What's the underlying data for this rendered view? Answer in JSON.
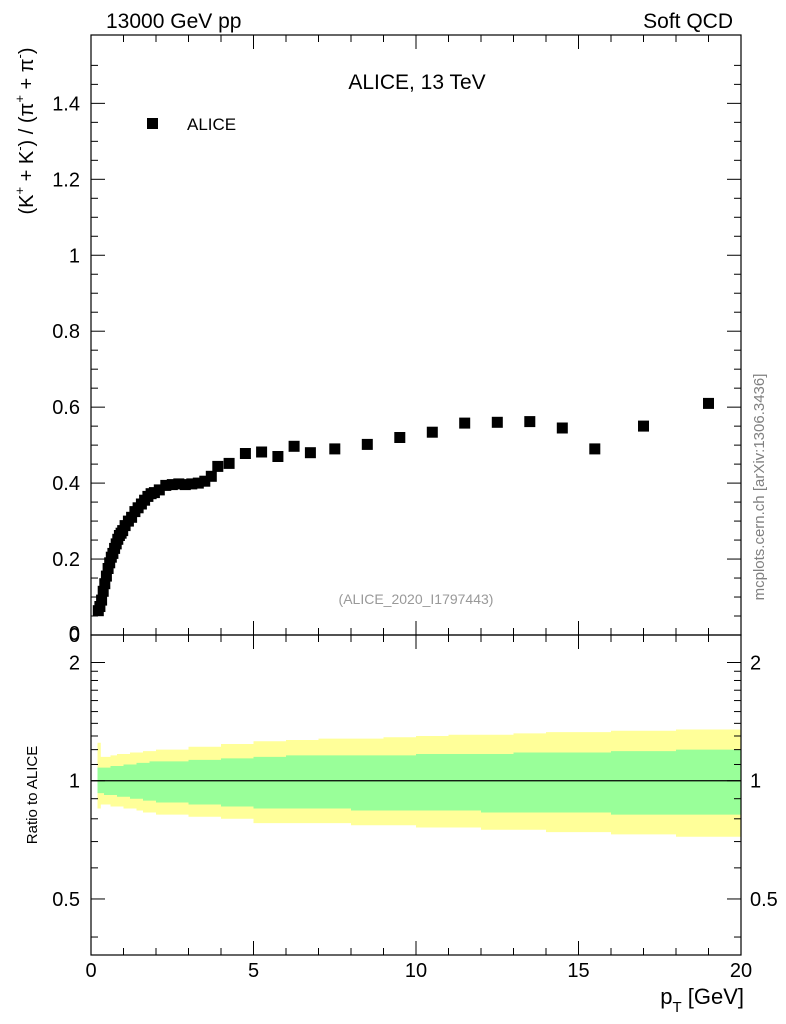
{
  "header": {
    "left": "13000 GeV pp",
    "right": "Soft QCD"
  },
  "side_label": "mcplots.cern.ch [arXiv:1306.3436]",
  "colors": {
    "band_outer": "#ffff99",
    "band_inner": "#99ff99",
    "marker": "#000000",
    "ref_line": "#000000",
    "watermark": "#999999"
  },
  "chart_data": [
    {
      "type": "scatter",
      "panel": "main",
      "title": "ALICE, 13 TeV",
      "ylabel_parts": {
        "open": "(K",
        "k_sup_plus": "+",
        "plus1": " + K",
        "k_sup_minus": "-",
        "mid": ") / (π",
        "pi_sup_plus": "+",
        "plus2": " + π",
        "pi_sup_minus": "-",
        "close": ")"
      },
      "watermark": "(ALICE_2020_I1797443)",
      "legend": {
        "entries": [
          "ALICE"
        ],
        "position": "top-left"
      },
      "xlim": [
        0,
        20
      ],
      "ylim": [
        0,
        1.58
      ],
      "yticks": [
        "0",
        "0.2",
        "0.4",
        "0.6",
        "0.8",
        "1",
        "1.2",
        "1.4"
      ],
      "series": [
        {
          "name": "ALICE",
          "x": [
            0.225,
            0.275,
            0.325,
            0.375,
            0.425,
            0.475,
            0.525,
            0.575,
            0.625,
            0.675,
            0.725,
            0.775,
            0.825,
            0.875,
            0.925,
            0.975,
            1.05,
            1.15,
            1.25,
            1.35,
            1.45,
            1.55,
            1.65,
            1.75,
            1.85,
            1.95,
            2.1,
            2.3,
            2.5,
            2.7,
            2.9,
            3.1,
            3.3,
            3.5,
            3.7,
            3.9,
            4.25,
            4.75,
            5.25,
            5.75,
            6.25,
            6.75,
            7.5,
            8.5,
            9.5,
            10.5,
            11.5,
            12.5,
            13.5,
            14.5,
            15.5,
            17.0,
            19.0
          ],
          "y": [
            0.064,
            0.075,
            0.092,
            0.115,
            0.135,
            0.155,
            0.175,
            0.19,
            0.205,
            0.215,
            0.228,
            0.24,
            0.252,
            0.262,
            0.268,
            0.275,
            0.288,
            0.3,
            0.31,
            0.325,
            0.335,
            0.345,
            0.355,
            0.365,
            0.372,
            0.375,
            0.382,
            0.394,
            0.396,
            0.398,
            0.396,
            0.398,
            0.4,
            0.405,
            0.418,
            0.444,
            0.452,
            0.478,
            0.482,
            0.47,
            0.497,
            0.48,
            0.49,
            0.502,
            0.52,
            0.534,
            0.558,
            0.56,
            0.562,
            0.545,
            0.49,
            0.55,
            0.61
          ]
        }
      ]
    },
    {
      "type": "area",
      "panel": "ratio",
      "ylabel": "Ratio to ALICE",
      "xlabel": "p",
      "xlabel_sub": "T",
      "xlabel_unit": " [GeV]",
      "xlim": [
        0,
        20
      ],
      "ylim": [
        0.36,
        2.35
      ],
      "yscale": "log",
      "xticks": [
        "0",
        "5",
        "10",
        "15",
        "20"
      ],
      "yticks": [
        "0.5",
        "1",
        "2"
      ],
      "reference": 1,
      "bands": {
        "x_edges": [
          0.2,
          0.3,
          0.4,
          0.6,
          0.8,
          1.0,
          1.2,
          1.4,
          1.6,
          1.8,
          2.0,
          3.0,
          4.0,
          5.0,
          6.0,
          7.0,
          8.0,
          9.0,
          10.0,
          11.0,
          12.0,
          13.0,
          14.0,
          16.0,
          18.0,
          20.0
        ],
        "inner_up": [
          1.08,
          1.08,
          1.08,
          1.09,
          1.09,
          1.1,
          1.1,
          1.11,
          1.11,
          1.12,
          1.12,
          1.13,
          1.14,
          1.15,
          1.16,
          1.16,
          1.16,
          1.16,
          1.17,
          1.17,
          1.17,
          1.18,
          1.18,
          1.19,
          1.2
        ],
        "inner_down": [
          0.93,
          0.93,
          0.92,
          0.92,
          0.91,
          0.91,
          0.9,
          0.9,
          0.89,
          0.89,
          0.88,
          0.87,
          0.86,
          0.85,
          0.85,
          0.85,
          0.84,
          0.84,
          0.84,
          0.84,
          0.83,
          0.83,
          0.83,
          0.82,
          0.82
        ],
        "outer_up": [
          1.25,
          1.15,
          1.15,
          1.16,
          1.17,
          1.17,
          1.18,
          1.18,
          1.19,
          1.19,
          1.2,
          1.22,
          1.24,
          1.26,
          1.27,
          1.28,
          1.28,
          1.29,
          1.3,
          1.31,
          1.31,
          1.32,
          1.33,
          1.34,
          1.35
        ],
        "outer_down": [
          0.85,
          0.87,
          0.87,
          0.86,
          0.86,
          0.85,
          0.85,
          0.84,
          0.83,
          0.83,
          0.82,
          0.81,
          0.8,
          0.78,
          0.78,
          0.78,
          0.77,
          0.77,
          0.76,
          0.76,
          0.75,
          0.75,
          0.74,
          0.73,
          0.72
        ]
      }
    }
  ]
}
